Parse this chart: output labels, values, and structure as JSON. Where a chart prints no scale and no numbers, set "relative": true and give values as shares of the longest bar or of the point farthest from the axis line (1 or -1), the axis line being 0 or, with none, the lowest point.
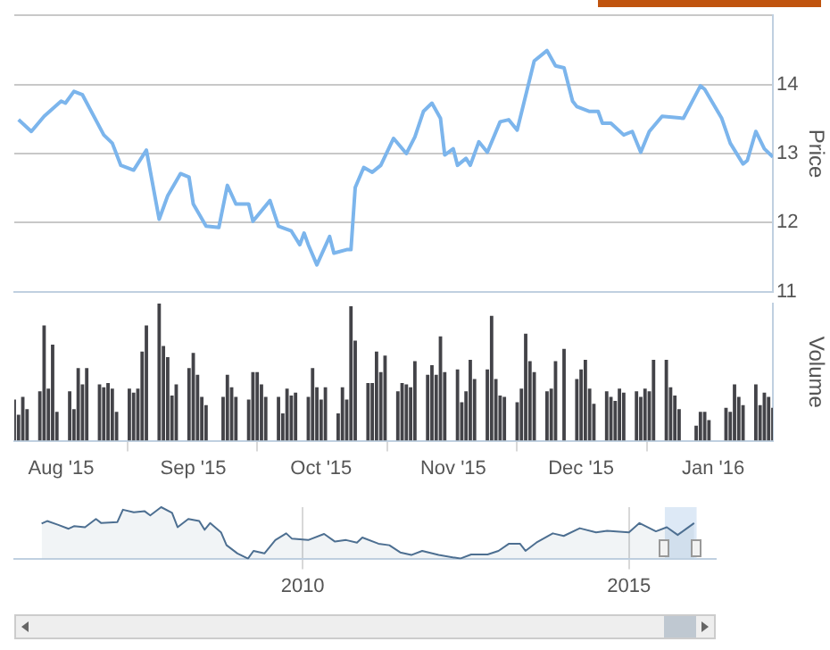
{
  "chart_data": [
    {
      "type": "line",
      "ylabel": "Price",
      "color": "#7cb5ec",
      "xlim": [
        "2015-07-21",
        "2016-01-15"
      ],
      "ylim": [
        11,
        15
      ],
      "yticks": [
        11,
        12,
        13,
        14,
        {
          "value": 15,
          "label": null
        }
      ],
      "grid": "y",
      "tick_labels": "y",
      "x": [
        "2015-07-22",
        "2015-07-25",
        "2015-07-28",
        "2015-08-01",
        "2015-08-02",
        "2015-08-04",
        "2015-08-06",
        "2015-08-11",
        "2015-08-13",
        "2015-08-15",
        "2015-08-18",
        "2015-08-21",
        "2015-08-24",
        "2015-08-26",
        "2015-08-29",
        "2015-08-31",
        "2015-09-01",
        "2015-09-04",
        "2015-09-07",
        "2015-09-09",
        "2015-09-11",
        "2015-09-14",
        "2015-09-15",
        "2015-09-19",
        "2015-09-21",
        "2015-09-24",
        "2015-09-26",
        "2015-09-27",
        "2015-09-28",
        "2015-09-30",
        "2015-10-03",
        "2015-10-04",
        "2015-10-07",
        "2015-10-08",
        "2015-10-09",
        "2015-10-11",
        "2015-10-13",
        "2015-10-15",
        "2015-10-18",
        "2015-10-21",
        "2015-10-23",
        "2015-10-25",
        "2015-10-27",
        "2015-10-29",
        "2015-10-30",
        "2015-11-01",
        "2015-11-02",
        "2015-11-04",
        "2015-11-05",
        "2015-11-07",
        "2015-11-09",
        "2015-11-12",
        "2015-11-14",
        "2015-11-16",
        "2015-11-20",
        "2015-11-23",
        "2015-11-25",
        "2015-11-27",
        "2015-11-29",
        "2015-11-30",
        "2015-12-03",
        "2015-12-05",
        "2015-12-06",
        "2015-12-08",
        "2015-12-11",
        "2015-12-13",
        "2015-12-15",
        "2015-12-17",
        "2015-12-20",
        "2015-12-25",
        "2015-12-29",
        "2015-12-30",
        "2016-01-03",
        "2016-01-05",
        "2016-01-08",
        "2016-01-09",
        "2016-01-11",
        "2016-01-13",
        "2016-01-15"
      ],
      "values": [
        13.49,
        13.32,
        13.54,
        13.76,
        13.73,
        13.9,
        13.85,
        13.27,
        13.15,
        12.83,
        12.76,
        13.05,
        12.05,
        12.39,
        12.71,
        12.66,
        12.27,
        11.95,
        11.93,
        12.54,
        12.27,
        12.27,
        12.02,
        12.32,
        11.95,
        11.88,
        11.68,
        11.85,
        11.68,
        11.39,
        11.8,
        11.56,
        11.61,
        11.61,
        12.51,
        12.8,
        12.73,
        12.83,
        13.22,
        13.0,
        13.24,
        13.61,
        13.73,
        13.51,
        12.98,
        13.07,
        12.83,
        12.93,
        12.83,
        13.17,
        13.02,
        13.46,
        13.49,
        13.34,
        14.34,
        14.49,
        14.27,
        14.24,
        13.76,
        13.68,
        13.61,
        13.61,
        13.44,
        13.44,
        13.27,
        13.32,
        13.02,
        13.32,
        13.54,
        13.51,
        13.98,
        13.93,
        13.51,
        13.15,
        12.85,
        12.9,
        13.32,
        13.07,
        12.95
      ]
    },
    {
      "type": "bar",
      "ylabel": "Volume",
      "relative": true,
      "color": "#434348",
      "xlim": [
        "2015-07-21",
        "2016-01-15"
      ],
      "xticks": [
        {
          "value": "2015-08-01",
          "label": "Aug '15"
        },
        {
          "value": "2015-09-01",
          "label": "Sep '15"
        },
        {
          "value": "2015-10-01",
          "label": "Oct '15"
        },
        {
          "value": "2015-11-01",
          "label": "Nov '15"
        },
        {
          "value": "2015-12-01",
          "label": "Dec '15"
        },
        {
          "value": "2016-01-01",
          "label": "Jan '16"
        }
      ],
      "x": [
        "2015-07-21",
        "2015-07-22",
        "2015-07-23",
        "2015-07-24",
        "2015-07-27",
        "2015-07-28",
        "2015-07-29",
        "2015-07-30",
        "2015-07-31",
        "2015-08-03",
        "2015-08-04",
        "2015-08-05",
        "2015-08-06",
        "2015-08-07",
        "2015-08-10",
        "2015-08-11",
        "2015-08-12",
        "2015-08-13",
        "2015-08-14",
        "2015-08-17",
        "2015-08-18",
        "2015-08-19",
        "2015-08-20",
        "2015-08-21",
        "2015-08-24",
        "2015-08-25",
        "2015-08-26",
        "2015-08-27",
        "2015-08-28",
        "2015-08-31",
        "2015-09-01",
        "2015-09-02",
        "2015-09-03",
        "2015-09-04",
        "2015-09-08",
        "2015-09-09",
        "2015-09-10",
        "2015-09-11",
        "2015-09-14",
        "2015-09-15",
        "2015-09-16",
        "2015-09-17",
        "2015-09-18",
        "2015-09-21",
        "2015-09-22",
        "2015-09-23",
        "2015-09-24",
        "2015-09-25",
        "2015-09-28",
        "2015-09-29",
        "2015-09-30",
        "2015-10-01",
        "2015-10-02",
        "2015-10-05",
        "2015-10-06",
        "2015-10-07",
        "2015-10-08",
        "2015-10-09",
        "2015-10-12",
        "2015-10-13",
        "2015-10-14",
        "2015-10-15",
        "2015-10-16",
        "2015-10-19",
        "2015-10-20",
        "2015-10-21",
        "2015-10-22",
        "2015-10-23",
        "2015-10-26",
        "2015-10-27",
        "2015-10-28",
        "2015-10-29",
        "2015-10-30",
        "2015-11-02",
        "2015-11-03",
        "2015-11-04",
        "2015-11-05",
        "2015-11-06",
        "2015-11-09",
        "2015-11-10",
        "2015-11-11",
        "2015-11-12",
        "2015-11-13",
        "2015-11-16",
        "2015-11-17",
        "2015-11-18",
        "2015-11-19",
        "2015-11-20",
        "2015-11-23",
        "2015-11-24",
        "2015-11-25",
        "2015-11-27",
        "2015-11-30",
        "2015-12-01",
        "2015-12-02",
        "2015-12-03",
        "2015-12-04",
        "2015-12-07",
        "2015-12-08",
        "2015-12-09",
        "2015-12-10",
        "2015-12-11",
        "2015-12-14",
        "2015-12-15",
        "2015-12-16",
        "2015-12-17",
        "2015-12-18",
        "2015-12-21",
        "2015-12-22",
        "2015-12-23",
        "2015-12-24",
        "2015-12-28",
        "2015-12-29",
        "2015-12-30",
        "2015-12-31",
        "2016-01-04",
        "2016-01-05",
        "2016-01-06",
        "2016-01-07",
        "2016-01-08",
        "2016-01-11",
        "2016-01-12",
        "2016-01-13",
        "2016-01-14",
        "2016-01-15"
      ],
      "values": [
        0.3,
        0.19,
        0.32,
        0.23,
        0.36,
        0.84,
        0.38,
        0.7,
        0.21,
        0.36,
        0.23,
        0.53,
        0.41,
        0.53,
        0.41,
        0.39,
        0.42,
        0.38,
        0.21,
        0.38,
        0.35,
        0.38,
        0.65,
        0.84,
        1,
        0.69,
        0.61,
        0.33,
        0.41,
        0.53,
        0.64,
        0.48,
        0.32,
        0.26,
        0.32,
        0.48,
        0.39,
        0.32,
        0.3,
        0.5,
        0.5,
        0.41,
        0.32,
        0.32,
        0.2,
        0.38,
        0.33,
        0.35,
        0.32,
        0.53,
        0.39,
        0.3,
        0.39,
        0.2,
        0.39,
        0.3,
        0.98,
        0.73,
        0.42,
        0.42,
        0.65,
        0.5,
        0.62,
        0.36,
        0.42,
        0.41,
        0.39,
        0.58,
        0.48,
        0.55,
        0.48,
        0.76,
        0.5,
        0.52,
        0.28,
        0.36,
        0.59,
        0.45,
        0.52,
        0.91,
        0.45,
        0.33,
        0.32,
        0.28,
        0.38,
        0.78,
        0.58,
        0.5,
        0.36,
        0.38,
        0.58,
        0.67,
        0.45,
        0.52,
        0.59,
        0.38,
        0.27,
        0.36,
        0.32,
        0.29,
        0.38,
        0.35,
        0.36,
        0.32,
        0.38,
        0.36,
        0.59,
        0.59,
        0.39,
        0.33,
        0.23,
        0.11,
        0.21,
        0.21,
        0.15,
        0.24,
        0.21,
        0.41,
        0.32,
        0.26,
        0.41,
        0.26,
        0.35,
        0.32,
        0.24
      ]
    },
    {
      "type": "area",
      "relative": true,
      "color": "#4d6f91",
      "xlim": [
        "2005-08",
        "2016-05"
      ],
      "xticks": [
        "2010",
        "2015"
      ],
      "grid": "x",
      "bands": [
        {
          "axis": "x",
          "from": "2015-07-21",
          "to": "2016-01-15",
          "color": "#c6daf0"
        }
      ],
      "x": [
        "2006-01",
        "2006-02",
        "2006-04",
        "2006-06",
        "2006-07",
        "2006-09",
        "2006-11",
        "2006-12",
        "2007-03",
        "2007-04",
        "2007-06",
        "2007-08",
        "2007-09",
        "2007-11",
        "2008-01",
        "2008-02",
        "2008-04",
        "2008-06",
        "2008-07",
        "2008-08",
        "2008-10",
        "2008-11",
        "2009-01",
        "2009-03",
        "2009-04",
        "2009-06",
        "2009-08",
        "2009-10",
        "2009-11",
        "2010-02",
        "2010-05",
        "2010-07",
        "2010-09",
        "2010-11",
        "2010-12",
        "2011-03",
        "2011-05",
        "2011-07",
        "2011-09",
        "2011-11",
        "2012-02",
        "2012-06",
        "2012-08",
        "2012-11",
        "2013-01",
        "2013-03",
        "2013-05",
        "2013-06",
        "2013-08",
        "2013-11",
        "2014-01",
        "2014-04",
        "2014-07",
        "2014-09",
        "2015-01",
        "2015-03",
        "2015-06",
        "2015-08",
        "2015-10",
        "2016-01"
      ],
      "values": [
        0.68,
        0.73,
        0.66,
        0.58,
        0.63,
        0.61,
        0.77,
        0.69,
        0.71,
        0.95,
        0.9,
        0.92,
        0.84,
        1,
        0.89,
        0.61,
        0.77,
        0.73,
        0.56,
        0.69,
        0.51,
        0.26,
        0.1,
        0,
        0.15,
        0.1,
        0.36,
        0.49,
        0.39,
        0.36,
        0.48,
        0.33,
        0.36,
        0.31,
        0.41,
        0.29,
        0.26,
        0.12,
        0.07,
        0.15,
        0.07,
        0,
        0.08,
        0.08,
        0.15,
        0.29,
        0.29,
        0.15,
        0.31,
        0.49,
        0.44,
        0.59,
        0.51,
        0.54,
        0.51,
        0.69,
        0.53,
        0.61,
        0.46,
        0.69
      ]
    }
  ]
}
